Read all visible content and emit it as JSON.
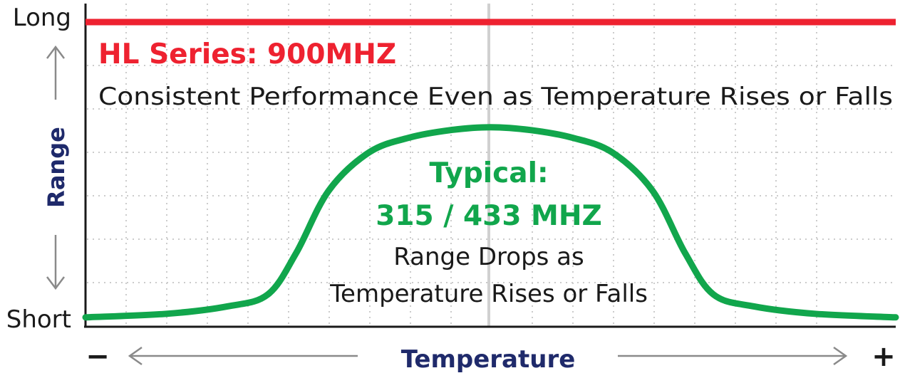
{
  "chart_data": {
    "type": "line",
    "ylabel": "Range",
    "xlabel": "Temperature",
    "y_ticks": {
      "top": "Long",
      "bottom": "Short"
    },
    "x_ends": {
      "left": "−",
      "right": "+"
    },
    "xlim": [
      -1,
      1
    ],
    "ylim": [
      0,
      1
    ],
    "grid": true,
    "series": [
      {
        "name": "HL Series: 900MHZ",
        "description": "Consistent Performance Even as Temperature Rises or Falls",
        "color": "#ee2230",
        "x": [
          -1,
          1
        ],
        "y": [
          1.0,
          1.0
        ]
      },
      {
        "name": "Typical:",
        "name_line2": "315 / 433 MHZ",
        "description_line1": "Range Drops as",
        "description_line2": "Temperature Rises or Falls",
        "color": "#11a64c",
        "x": [
          -1.0,
          -0.8,
          -0.65,
          -0.55,
          -0.48,
          -0.4,
          -0.3,
          -0.2,
          -0.1,
          0.0,
          0.1,
          0.2,
          0.3,
          0.4,
          0.48,
          0.55,
          0.65,
          0.8,
          1.0
        ],
        "y": [
          0.003,
          0.015,
          0.04,
          0.08,
          0.22,
          0.43,
          0.56,
          0.61,
          0.635,
          0.645,
          0.635,
          0.61,
          0.56,
          0.43,
          0.22,
          0.08,
          0.04,
          0.015,
          0.003
        ]
      }
    ]
  },
  "colors": {
    "axis_label": "#1f2a6b",
    "arrow": "#8a8a8a",
    "grid": "#cccccc",
    "center_line": "#d0d0d0"
  }
}
